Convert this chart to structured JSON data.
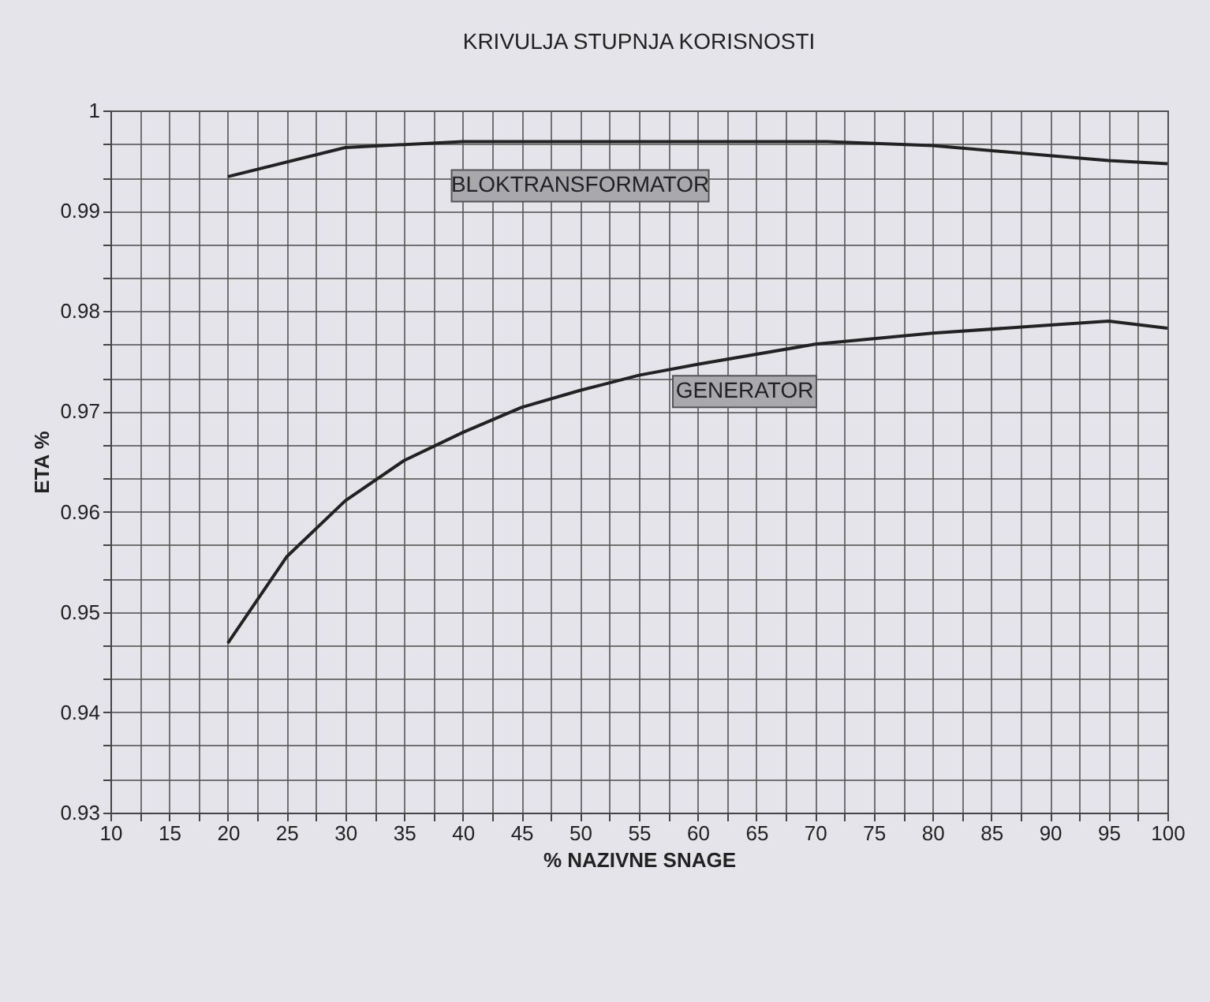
{
  "chart_data": {
    "type": "line",
    "title": "KRIVULJA STUPNJA KORISNOSTI",
    "xlabel": "% NAZIVNE SNAGE",
    "ylabel": "ETA %",
    "xlim": [
      10,
      100
    ],
    "ylim": [
      0.93,
      1
    ],
    "xticks": [
      10,
      {
        "value": 12.5,
        "label": null
      },
      15,
      {
        "value": 17.5,
        "label": null
      },
      20,
      {
        "value": 22.5,
        "label": null
      },
      25,
      {
        "value": 27.5,
        "label": null
      },
      30,
      {
        "value": 32.5,
        "label": null
      },
      35,
      {
        "value": 37.5,
        "label": null
      },
      40,
      {
        "value": 42.5,
        "label": null
      },
      45,
      {
        "value": 47.5,
        "label": null
      },
      50,
      {
        "value": 52.5,
        "label": null
      },
      55,
      {
        "value": 57.5,
        "label": null
      },
      60,
      {
        "value": 62.5,
        "label": null
      },
      65,
      {
        "value": 67.5,
        "label": null
      },
      70,
      {
        "value": 72.5,
        "label": null
      },
      75,
      {
        "value": 77.5,
        "label": null
      },
      80,
      {
        "value": 82.5,
        "label": null
      },
      85,
      {
        "value": 87.5,
        "label": null
      },
      90,
      {
        "value": 92.5,
        "label": null
      },
      95,
      {
        "value": 97.5,
        "label": null
      },
      100
    ],
    "yticks": [
      0.93,
      {
        "value": 0.9333,
        "label": null
      },
      {
        "value": 0.9367,
        "label": null
      },
      0.94,
      {
        "value": 0.9433,
        "label": null
      },
      {
        "value": 0.9467,
        "label": null
      },
      0.95,
      {
        "value": 0.9533,
        "label": null
      },
      {
        "value": 0.9567,
        "label": null
      },
      0.96,
      {
        "value": 0.9633,
        "label": null
      },
      {
        "value": 0.9667,
        "label": null
      },
      0.97,
      {
        "value": 0.9733,
        "label": null
      },
      {
        "value": 0.9767,
        "label": null
      },
      0.98,
      {
        "value": 0.9833,
        "label": null
      },
      {
        "value": 0.9867,
        "label": null
      },
      0.99,
      {
        "value": 0.9933,
        "label": null
      },
      {
        "value": 0.9967,
        "label": null
      },
      1
    ],
    "grid": true,
    "legend": false,
    "series": [
      {
        "name": "BLOKTRANSFORMATOR",
        "color": "#222222",
        "x": [
          20,
          30,
          40,
          50,
          60,
          71,
          80,
          90,
          95,
          100
        ],
        "values": [
          0.9934,
          0.9963,
          0.9969,
          0.9969,
          0.9969,
          0.9969,
          0.9965,
          0.9955,
          0.995,
          0.9947
        ]
      },
      {
        "name": "GENERATOR",
        "color": "#222222",
        "x": [
          20,
          25,
          30,
          35,
          40,
          45,
          50,
          55,
          60,
          70,
          80,
          90,
          95,
          100
        ],
        "values": [
          0.9469,
          0.9555,
          0.9611,
          0.9651,
          0.9679,
          0.9704,
          0.9721,
          0.9736,
          0.9747,
          0.9767,
          0.9778,
          0.9786,
          0.979,
          0.9783
        ]
      }
    ]
  }
}
